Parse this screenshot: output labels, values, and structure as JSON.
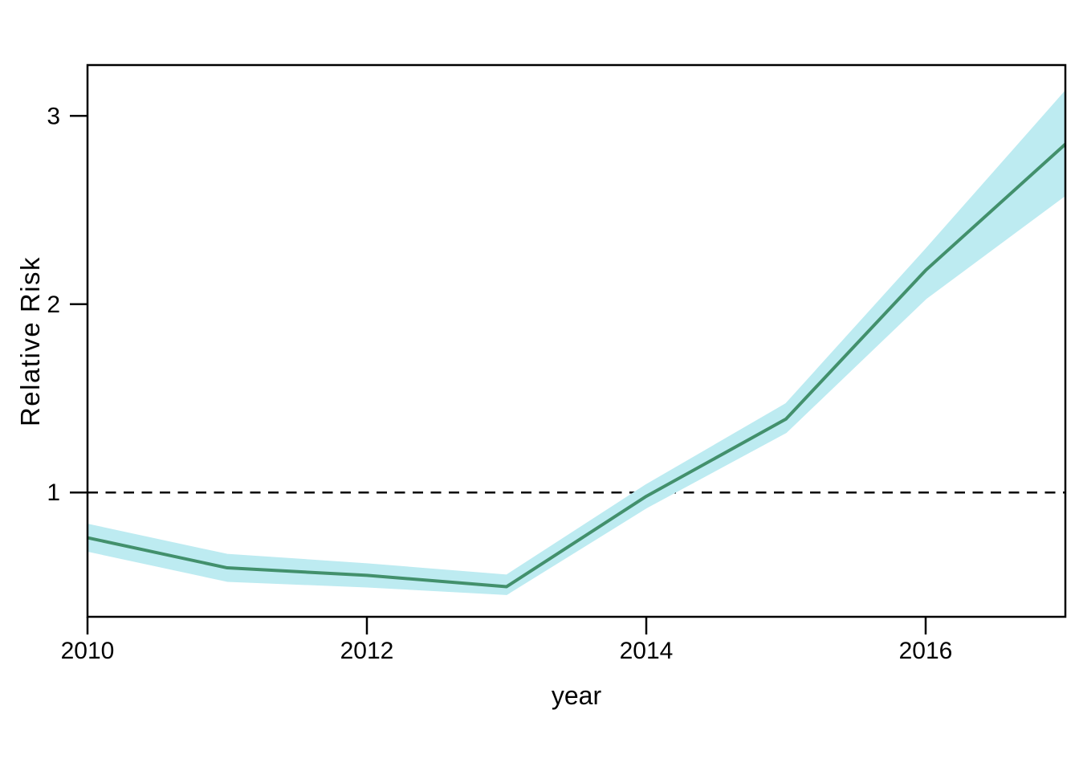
{
  "chart_data": {
    "type": "line",
    "title": "",
    "xlabel": "year",
    "ylabel": "Relative Risk",
    "x": [
      2010,
      2011,
      2012,
      2013,
      2014,
      2015,
      2016,
      2017
    ],
    "series": [
      {
        "name": "relative_risk",
        "values": [
          0.76,
          0.6,
          0.56,
          0.5,
          0.98,
          1.39,
          2.18,
          2.85
        ]
      },
      {
        "name": "ci_lower",
        "values": [
          0.69,
          0.53,
          0.5,
          0.46,
          0.92,
          1.32,
          2.03,
          2.58
        ]
      },
      {
        "name": "ci_upper",
        "values": [
          0.83,
          0.67,
          0.62,
          0.56,
          1.04,
          1.47,
          2.29,
          3.13
        ]
      }
    ],
    "reference_line_y": 1,
    "x_ticks": [
      2010,
      2012,
      2014,
      2016
    ],
    "y_ticks": [
      1,
      2,
      3
    ],
    "xlim": [
      2010,
      2017
    ],
    "ylim": [
      0.34,
      3.27
    ],
    "grid": false,
    "legend": "none",
    "colors": {
      "line": "#42906C",
      "band": "#BDEBF1",
      "axis": "#000000",
      "reference": "#000000",
      "background": "#FFFFFF"
    }
  }
}
